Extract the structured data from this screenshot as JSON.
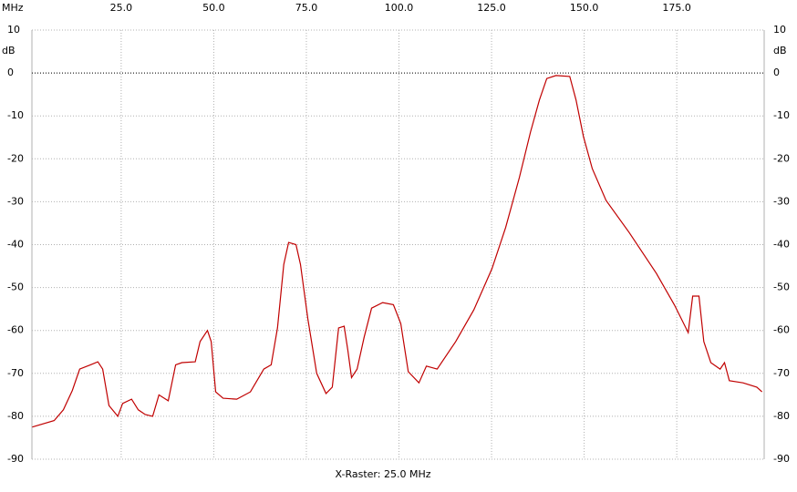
{
  "chart_data": {
    "type": "line",
    "x_unit": "MHz",
    "y_unit": "dB",
    "xlabel": "X-Raster: 25.0 MHz",
    "xlim": [
      0.9,
      198.6
    ],
    "ylim": [
      -90,
      10
    ],
    "xticks": [
      {
        "value": 25,
        "label": "25.0"
      },
      {
        "value": 50,
        "label": "50.0"
      },
      {
        "value": 75,
        "label": "75.0"
      },
      {
        "value": 100,
        "label": "100.0"
      },
      {
        "value": 125,
        "label": "125.0"
      },
      {
        "value": 150,
        "label": "150.0"
      },
      {
        "value": 175,
        "label": "175.0"
      }
    ],
    "yticks": [
      10,
      0,
      -10,
      -20,
      -30,
      -40,
      -50,
      -60,
      -70,
      -80,
      -90
    ],
    "grid": true,
    "grid_color": "#b0b0b0",
    "reference_y": 0,
    "reference_color": "#000000",
    "x": [
      1,
      6.9,
      9.4,
      11.8,
      13.8,
      16.7,
      18.7,
      20,
      21.7,
      24.1,
      25.4,
      27.8,
      29.6,
      31.5,
      33.5,
      35.2,
      37.7,
      39.7,
      41.4,
      45,
      46.3,
      48.3,
      49.3,
      50.5,
      52.5,
      56.2,
      59.9,
      63.5,
      65.5,
      67.2,
      68.9,
      70.2,
      72.2,
      73.4,
      75.4,
      77.8,
      80.3,
      82,
      83.7,
      85.2,
      86.2,
      87.2,
      88.7,
      90.6,
      92.6,
      95.6,
      98.5,
      100.5,
      102.5,
      105.4,
      107.4,
      110.3,
      115.3,
      120.2,
      125.1,
      128.8,
      132.5,
      135.5,
      137.9,
      139.9,
      142.4,
      146.1,
      147.8,
      149.8,
      152.2,
      155.9,
      162.1,
      169.5,
      174.4,
      178.1,
      179.3,
      181,
      182.3,
      184.2,
      186.7,
      187.9,
      189.2,
      192.9,
      196.6,
      198
    ],
    "series": [
      {
        "color": "#c00000",
        "values": [
          -82.5,
          -81,
          -78.5,
          -74,
          -69,
          -68,
          -67.3,
          -69,
          -77.5,
          -80,
          -77,
          -76,
          -78.5,
          -79.6,
          -80,
          -75,
          -76.4,
          -68,
          -67.5,
          -67.3,
          -62.6,
          -60,
          -62.6,
          -74.3,
          -75.8,
          -76,
          -74.3,
          -69,
          -68,
          -59.4,
          -44.6,
          -39.5,
          -40,
          -44.6,
          -57.3,
          -70,
          -74.7,
          -73.2,
          -59.4,
          -59,
          -64.7,
          -71,
          -69,
          -61.6,
          -54.8,
          -53.5,
          -54,
          -58.4,
          -69.6,
          -72.2,
          -68.3,
          -69,
          -62.6,
          -55.2,
          -45.6,
          -36,
          -24.4,
          -13.8,
          -6.3,
          -1.3,
          -0.6,
          -0.8,
          -6.3,
          -14.8,
          -22.3,
          -29.7,
          -37.1,
          -46.7,
          -54.1,
          -60.5,
          -52,
          -52,
          -62.6,
          -67.5,
          -69,
          -67.5,
          -71.7,
          -72.2,
          -73.2,
          -74.3
        ]
      }
    ]
  }
}
